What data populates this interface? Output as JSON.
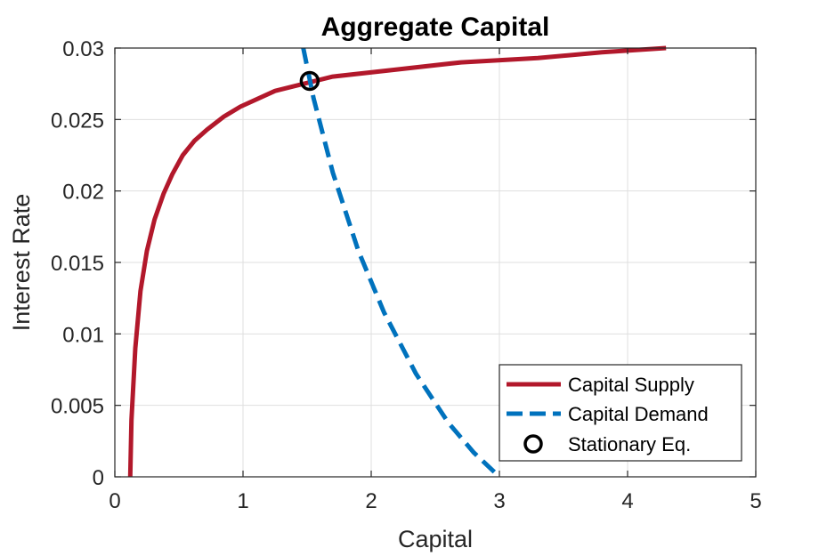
{
  "chart_data": {
    "type": "line",
    "title": "Aggregate Capital",
    "xlabel": "Capital",
    "ylabel": "Interest Rate",
    "xlim": [
      0,
      5
    ],
    "ylim": [
      0,
      0.03
    ],
    "xticks": [
      0,
      1,
      2,
      3,
      4,
      5
    ],
    "xtick_labels": [
      "0",
      "1",
      "2",
      "3",
      "4",
      "5"
    ],
    "yticks": [
      0,
      0.005,
      0.01,
      0.015,
      0.02,
      0.025,
      0.03
    ],
    "ytick_labels": [
      "0",
      "0.005",
      "0.01",
      "0.015",
      "0.02",
      "0.025",
      "0.03"
    ],
    "grid": true,
    "legend_position": "bottom-right",
    "series": [
      {
        "name": "Capital Supply",
        "color": "#B2182B",
        "style": "solid",
        "x": [
          0.12,
          0.13,
          0.16,
          0.2,
          0.25,
          0.31,
          0.38,
          0.45,
          0.53,
          0.62,
          0.72,
          0.85,
          0.98,
          1.25,
          1.7,
          2.2,
          2.7,
          3.3,
          3.8,
          4.3
        ],
        "y": [
          0,
          0.004,
          0.009,
          0.013,
          0.0158,
          0.018,
          0.0198,
          0.0212,
          0.0225,
          0.0235,
          0.0243,
          0.0252,
          0.0259,
          0.027,
          0.028,
          0.0285,
          0.029,
          0.0293,
          0.0297,
          0.03
        ]
      },
      {
        "name": "Capital Demand",
        "color": "#0072BD",
        "style": "dashed",
        "x": [
          1.47,
          1.55,
          1.7,
          1.9,
          2.1,
          2.35,
          2.6,
          2.8,
          3.0
        ],
        "y": [
          0.03,
          0.0265,
          0.0213,
          0.0158,
          0.0115,
          0.0072,
          0.0038,
          0.0017,
          0
        ]
      },
      {
        "name": "Stationary Eq.",
        "color": "#000000",
        "style": "marker-circle",
        "x": [
          1.52
        ],
        "y": [
          0.0277
        ]
      }
    ]
  }
}
